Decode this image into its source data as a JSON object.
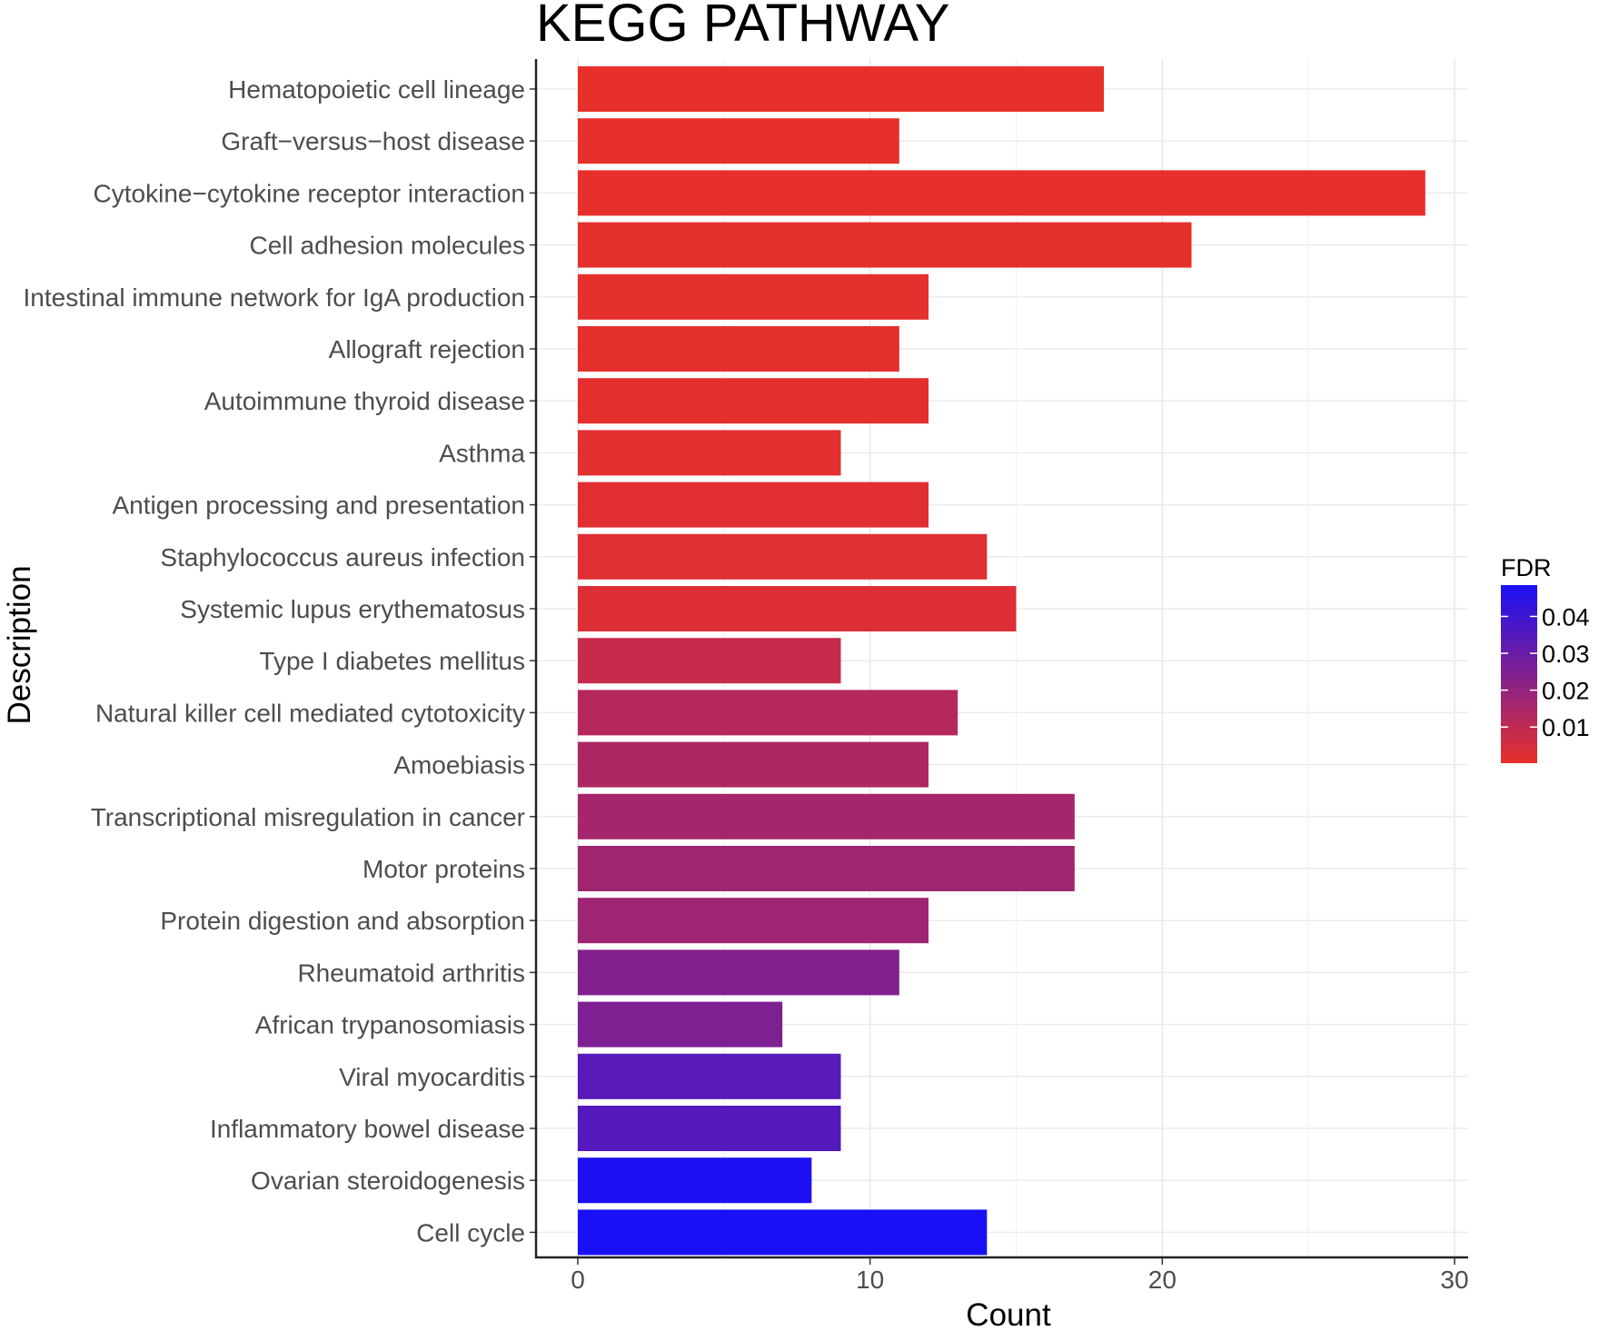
{
  "chart_data": {
    "type": "bar",
    "orientation": "horizontal",
    "title": "KEGG PATHWAY",
    "xlabel": "Count",
    "ylabel": "Description",
    "xlim": [
      0,
      30
    ],
    "xticks": [
      "0",
      "10",
      "20",
      "30"
    ],
    "xtick_values": [
      0,
      10,
      20,
      30
    ],
    "grid": true,
    "categories": [
      "Hematopoietic cell lineage",
      "Graft−versus−host disease",
      "Cytokine−cytokine receptor interaction",
      "Cell adhesion molecules",
      "Intestinal immune network for IgA production",
      "Allograft rejection",
      "Autoimmune thyroid disease",
      "Asthma",
      "Antigen processing and presentation",
      "Staphylococcus aureus infection",
      "Systemic lupus erythematosus",
      "Type I diabetes mellitus",
      "Natural killer cell mediated cytotoxicity",
      "Amoebiasis",
      "Transcriptional misregulation in cancer",
      "Motor proteins",
      "Protein digestion and absorption",
      "Rheumatoid arthritis",
      "African trypanosomiasis",
      "Viral myocarditis",
      "Inflammatory bowel disease",
      "Ovarian steroidogenesis",
      "Cell cycle"
    ],
    "values": [
      18,
      11,
      29,
      21,
      12,
      11,
      12,
      9,
      12,
      14,
      15,
      9,
      13,
      12,
      17,
      17,
      12,
      11,
      7,
      9,
      9,
      8,
      14
    ],
    "fdr": [
      0.0002,
      0.0004,
      0.0004,
      0.0006,
      0.0008,
      0.001,
      0.0012,
      0.0015,
      0.0018,
      0.0022,
      0.0028,
      0.008,
      0.012,
      0.014,
      0.016,
      0.017,
      0.0175,
      0.024,
      0.025,
      0.034,
      0.035,
      0.048,
      0.0485
    ],
    "color_scale": {
      "title": "FDR",
      "low_color": "#e8302a",
      "high_color": "#1a10f5",
      "range": [
        0.0002,
        0.0485
      ],
      "ticks": [
        "0.01",
        "0.02",
        "0.03",
        "0.04"
      ],
      "tick_values": [
        0.01,
        0.02,
        0.03,
        0.04
      ],
      "legend_position": "right"
    }
  }
}
